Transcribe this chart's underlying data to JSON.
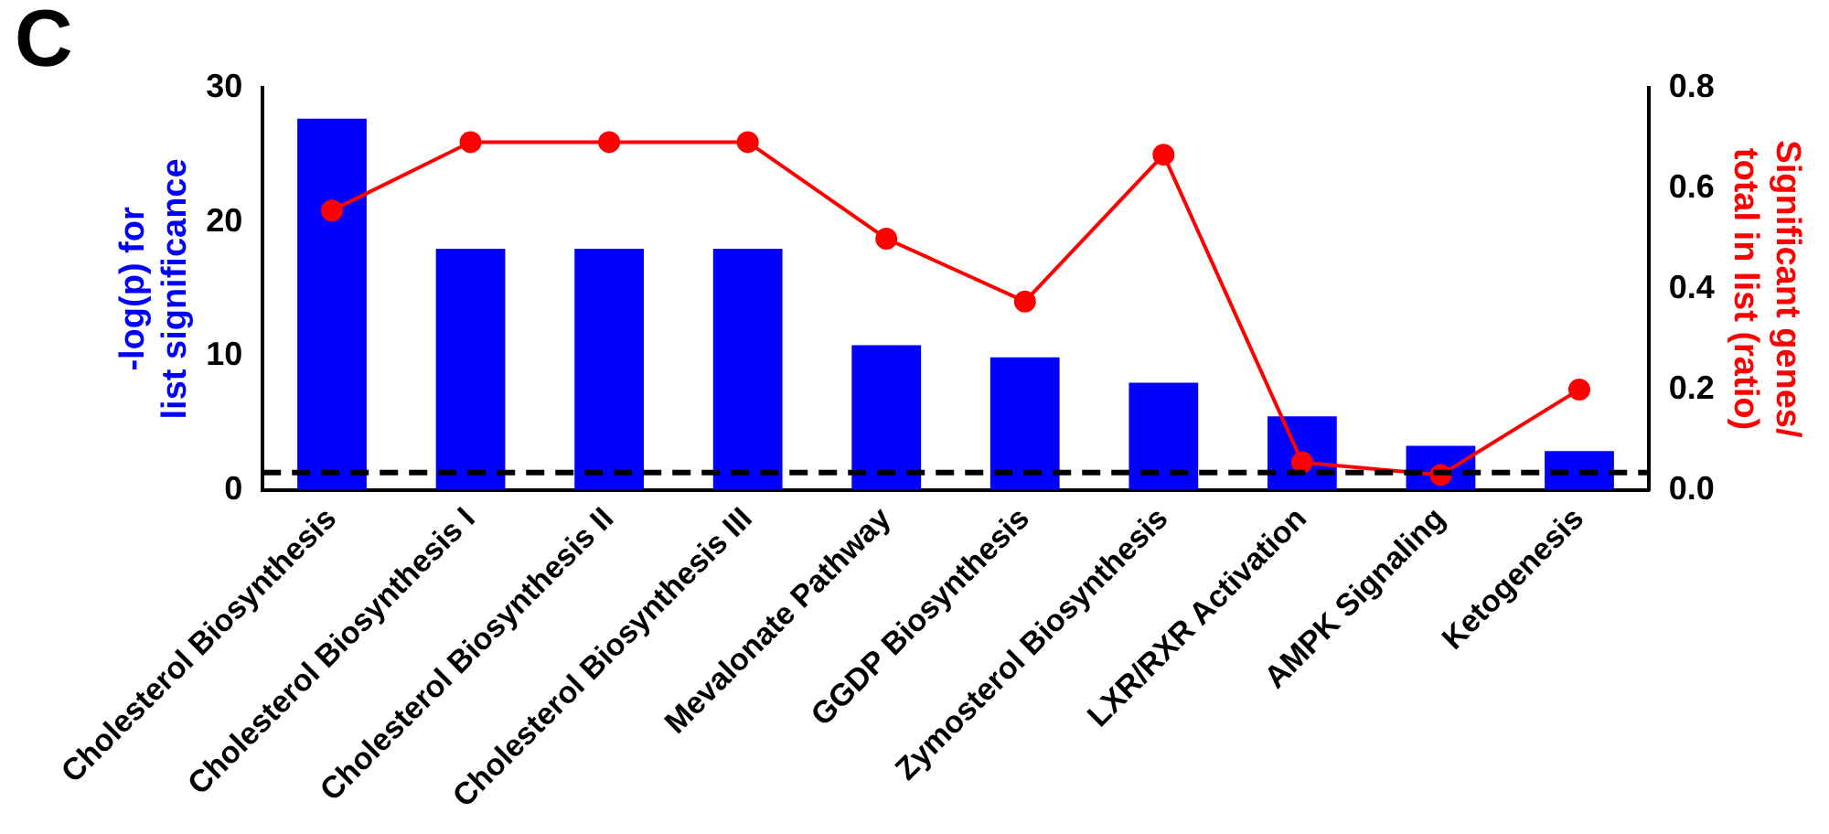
{
  "chart_data": {
    "type": "bar",
    "categories": [
      "Cholesterol Biosynthesis",
      "Cholesterol Biosynthesis I",
      "Cholesterol Biosynthesis II",
      "Cholesterol Biosynthesis III",
      "Mevalonate Pathway",
      "GGDP Biosynthesis",
      "Zymosterol Biosynthesis",
      "LXR/RXR Activation",
      "AMPK Signaling",
      "Ketogenesis"
    ],
    "series": [
      {
        "color": "#0000ff",
        "values": [
          27.7,
          18,
          18,
          18,
          10.8,
          9.9,
          8.0,
          5.5,
          3.3,
          2.9
        ]
      },
      {
        "type": "line",
        "axis": "y2",
        "color": "#ff0000",
        "marker": "circle",
        "values": [
          0.556,
          0.692,
          0.692,
          0.692,
          0.5,
          0.375,
          0.667,
          0.055,
          0.03,
          0.2
        ]
      }
    ],
    "ylabel": "-log(p) for\nlist significance",
    "y2label": "Significant genes/\ntotal in list (ratio)",
    "ylim": [
      0,
      30
    ],
    "yticks": [
      0,
      10,
      20,
      30
    ],
    "y2lim": [
      0,
      0.8
    ],
    "y2ticks": [
      {
        "value": 0,
        "label": "0.0"
      },
      0.2,
      0.4,
      0.6,
      0.8
    ],
    "ref_lines": [
      {
        "axis": "y",
        "value": 1.3,
        "color": "#000000",
        "line_style": "dashed"
      }
    ],
    "annotations": [
      "C"
    ],
    "grid": false,
    "legend": false
  }
}
